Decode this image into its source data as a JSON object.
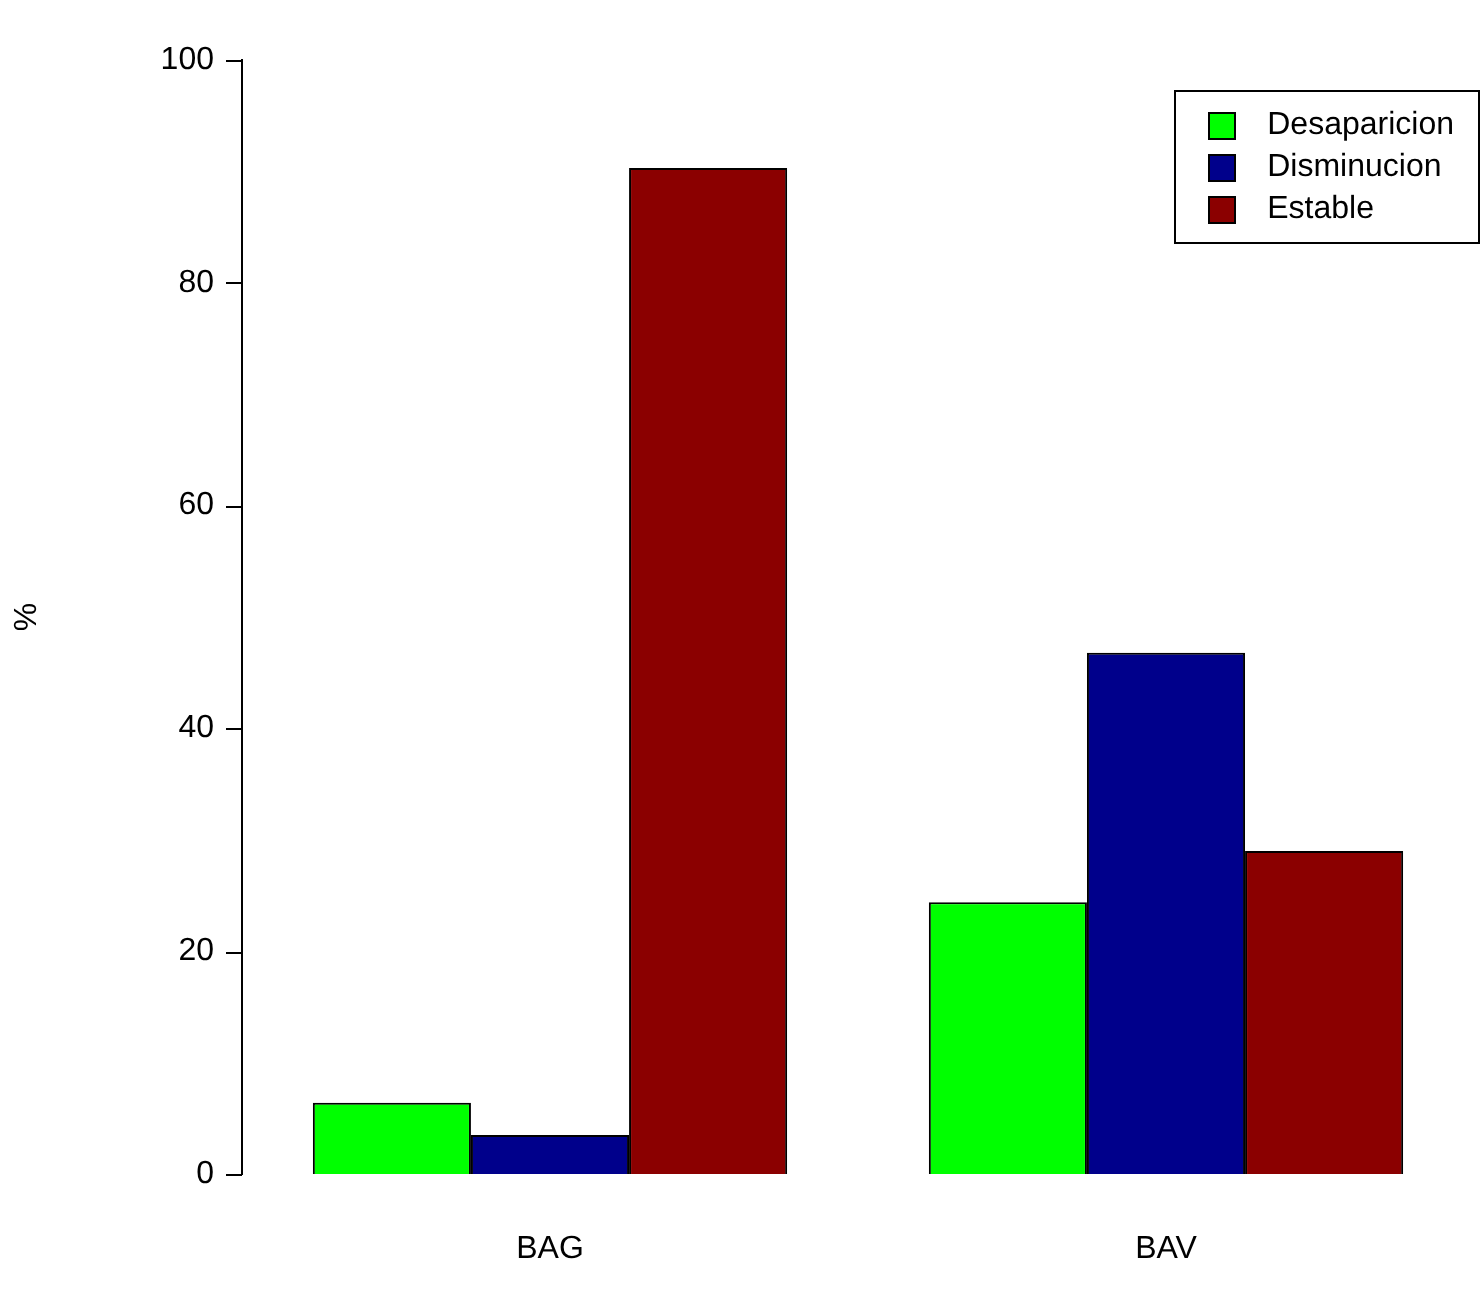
{
  "chart_data": {
    "type": "bar",
    "ylabel": "%",
    "categories": [
      "BAG",
      "BAV"
    ],
    "series": [
      {
        "name": "Desaparicion",
        "color": "#00ff00",
        "values": [
          6.4,
          24.4
        ]
      },
      {
        "name": "Disminucion",
        "color": "#00008b",
        "values": [
          3.5,
          46.8
        ]
      },
      {
        "name": "Estable",
        "color": "#8b0000",
        "values": [
          90.3,
          29.0
        ]
      }
    ],
    "ylim": [
      0,
      100
    ],
    "yticks": [
      0,
      20,
      40,
      60,
      80,
      100
    ],
    "grid": false,
    "legend": "top right"
  }
}
